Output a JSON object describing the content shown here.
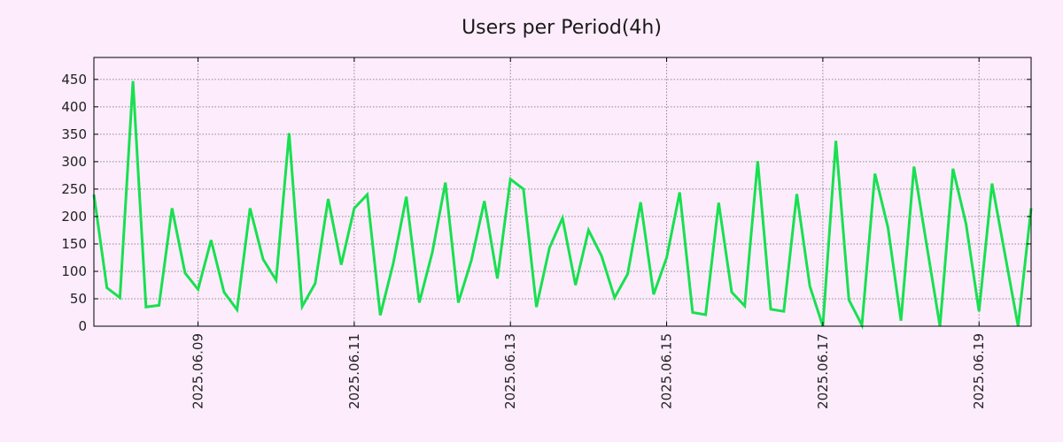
{
  "colors": {
    "background": "#fcecfc",
    "line": "#18e050",
    "grid": "#8a8a8a",
    "axis": "#000000"
  },
  "chart_data": {
    "type": "line",
    "title": "Users per Period(4h)",
    "xlabel": "",
    "ylabel": "",
    "grid": true,
    "ylim": [
      0,
      490
    ],
    "xlim": [
      "2025-06-07T16:00",
      "2025-06-19T16:00"
    ],
    "y_ticks": [
      0,
      50,
      100,
      150,
      200,
      250,
      300,
      350,
      400,
      450
    ],
    "x_ticks": [
      "2025.06.09",
      "2025.06.11",
      "2025.06.13",
      "2025.06.15",
      "2025.06.17",
      "2025.06.19"
    ],
    "series": [
      {
        "x": [
          "2025-06-07T16:00",
          "2025-06-07T20:00",
          "2025-06-08T00:00",
          "2025-06-08T04:00",
          "2025-06-08T08:00",
          "2025-06-08T12:00",
          "2025-06-08T16:00",
          "2025-06-08T20:00",
          "2025-06-09T00:00",
          "2025-06-09T04:00",
          "2025-06-09T08:00",
          "2025-06-09T12:00",
          "2025-06-09T16:00",
          "2025-06-09T20:00",
          "2025-06-10T00:00",
          "2025-06-10T04:00",
          "2025-06-10T08:00",
          "2025-06-10T12:00",
          "2025-06-10T16:00",
          "2025-06-10T20:00",
          "2025-06-11T00:00",
          "2025-06-11T04:00",
          "2025-06-11T08:00",
          "2025-06-11T12:00",
          "2025-06-11T16:00",
          "2025-06-11T20:00",
          "2025-06-12T00:00",
          "2025-06-12T04:00",
          "2025-06-12T08:00",
          "2025-06-12T12:00",
          "2025-06-12T16:00",
          "2025-06-12T20:00",
          "2025-06-13T00:00",
          "2025-06-13T04:00",
          "2025-06-13T08:00",
          "2025-06-13T12:00",
          "2025-06-13T16:00",
          "2025-06-13T20:00",
          "2025-06-14T00:00",
          "2025-06-14T04:00",
          "2025-06-14T08:00",
          "2025-06-14T12:00",
          "2025-06-14T16:00",
          "2025-06-14T20:00",
          "2025-06-15T00:00",
          "2025-06-15T04:00",
          "2025-06-15T08:00",
          "2025-06-15T12:00",
          "2025-06-15T16:00",
          "2025-06-15T20:00",
          "2025-06-16T00:00",
          "2025-06-16T04:00",
          "2025-06-16T08:00",
          "2025-06-16T12:00",
          "2025-06-16T16:00",
          "2025-06-16T20:00",
          "2025-06-17T00:00",
          "2025-06-17T04:00",
          "2025-06-17T08:00",
          "2025-06-17T12:00",
          "2025-06-17T16:00",
          "2025-06-17T20:00",
          "2025-06-18T00:00",
          "2025-06-18T04:00",
          "2025-06-18T08:00",
          "2025-06-18T12:00",
          "2025-06-18T16:00",
          "2025-06-18T20:00",
          "2025-06-19T00:00",
          "2025-06-19T04:00",
          "2025-06-19T08:00",
          "2025-06-19T12:00",
          "2025-06-19T16:00"
        ],
        "values": [
          240,
          70,
          52,
          447,
          35,
          38,
          215,
          97,
          67,
          157,
          62,
          30,
          215,
          122,
          84,
          352,
          36,
          78,
          232,
          112,
          215,
          240,
          20,
          115,
          236,
          43,
          135,
          262,
          43,
          120,
          228,
          87,
          268,
          250,
          35,
          143,
          197,
          75,
          175,
          128,
          52,
          95,
          226,
          58,
          125,
          244,
          25,
          21,
          225,
          62,
          37,
          301,
          31,
          27,
          241,
          73,
          0,
          338,
          48,
          2,
          278,
          180,
          10,
          291,
          145,
          0,
          287,
          187,
          27,
          260,
          130,
          0,
          215
        ]
      }
    ]
  }
}
